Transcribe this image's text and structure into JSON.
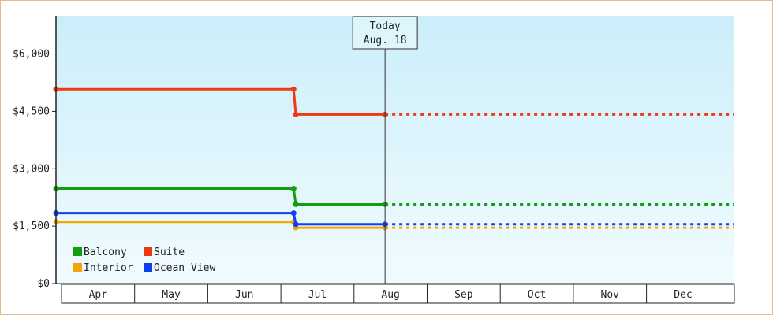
{
  "chart_data": {
    "type": "line",
    "step": true,
    "categories": [
      "Apr",
      "May",
      "Jun",
      "Jul",
      "Aug",
      "Sep",
      "Oct",
      "Nov",
      "Dec"
    ],
    "y_ticks": [
      "$0",
      "$1,500",
      "$3,000",
      "$4,500",
      "$6,000"
    ],
    "y_tick_values": [
      0,
      1500,
      3000,
      4500,
      6000
    ],
    "ylim": [
      0,
      7000
    ],
    "grid": false,
    "legend_placement": "bottom-left",
    "today": {
      "line1": "Today",
      "line2": "Aug. 18",
      "month_index": 4
    },
    "series": [
      {
        "name": "Balcony",
        "color": "#119e11",
        "points": [
          [
            0,
            2480
          ],
          [
            3.25,
            2480
          ],
          [
            3.28,
            2070
          ],
          [
            4.5,
            2070
          ]
        ],
        "forecast": 2070
      },
      {
        "name": "Suite",
        "color": "#ee3a10",
        "points": [
          [
            0,
            5080
          ],
          [
            3.25,
            5080
          ],
          [
            3.28,
            4420
          ],
          [
            4.5,
            4420
          ]
        ],
        "forecast": 4420
      },
      {
        "name": "Interior",
        "color": "#f5a40c",
        "points": [
          [
            0,
            1610
          ],
          [
            3.25,
            1610
          ],
          [
            3.28,
            1460
          ],
          [
            4.5,
            1460
          ]
        ],
        "forecast": 1460
      },
      {
        "name": "Ocean View",
        "color": "#1040ee",
        "points": [
          [
            0,
            1840
          ],
          [
            3.25,
            1840
          ],
          [
            3.28,
            1550
          ],
          [
            4.5,
            1550
          ]
        ],
        "forecast": 1550
      }
    ]
  }
}
